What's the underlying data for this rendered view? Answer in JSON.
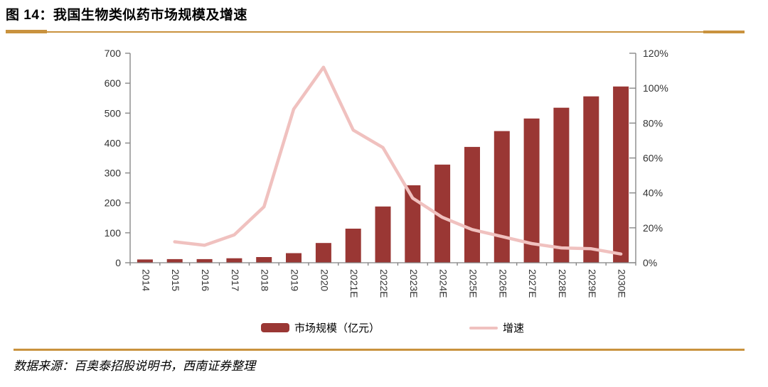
{
  "header": {
    "title": "图 14：我国生物类似药市场规模及增速"
  },
  "source_note": "数据来源：百奥泰招股说明书，西南证券整理",
  "legend": {
    "bar_label": "市场规模（亿元）",
    "line_label": "增速"
  },
  "colors": {
    "bar": "#9a3734",
    "line": "#f0c1bf",
    "gold": "#c9923e",
    "axis": "#808080",
    "ink": "#333333"
  },
  "chart_data": {
    "type": "combo",
    "title": "我国生物类似药市场规模及增速",
    "grid": false,
    "legend_position": "bottom",
    "categories": [
      "2014",
      "2015",
      "2016",
      "2017",
      "2018",
      "2019",
      "2020",
      "2021E",
      "2022E",
      "2023E",
      "2024E",
      "2025E",
      "2026E",
      "2027E",
      "2028E",
      "2029E",
      "2030E"
    ],
    "series": [
      {
        "name": "市场规模（亿元）",
        "type": "bar",
        "axis": "left",
        "values": [
          11,
          12,
          12,
          15,
          19,
          32,
          66,
          114,
          188,
          259,
          328,
          387,
          440,
          482,
          518,
          556,
          589
        ]
      },
      {
        "name": "增速",
        "type": "line",
        "axis": "right",
        "unit": "%",
        "values": [
          null,
          12,
          10,
          16,
          32,
          88,
          112,
          76,
          66,
          37,
          26,
          19,
          15,
          11,
          8.5,
          8,
          5
        ]
      }
    ],
    "left_axis": {
      "min": 0,
      "max": 700,
      "step": 100,
      "tick_labels": [
        "0",
        "100",
        "200",
        "300",
        "400",
        "500",
        "600",
        "700"
      ]
    },
    "right_axis": {
      "min": 0,
      "max": 120,
      "step": 20,
      "tick_labels": [
        "0%",
        "20%",
        "40%",
        "60%",
        "80%",
        "100%",
        "120%"
      ]
    }
  }
}
